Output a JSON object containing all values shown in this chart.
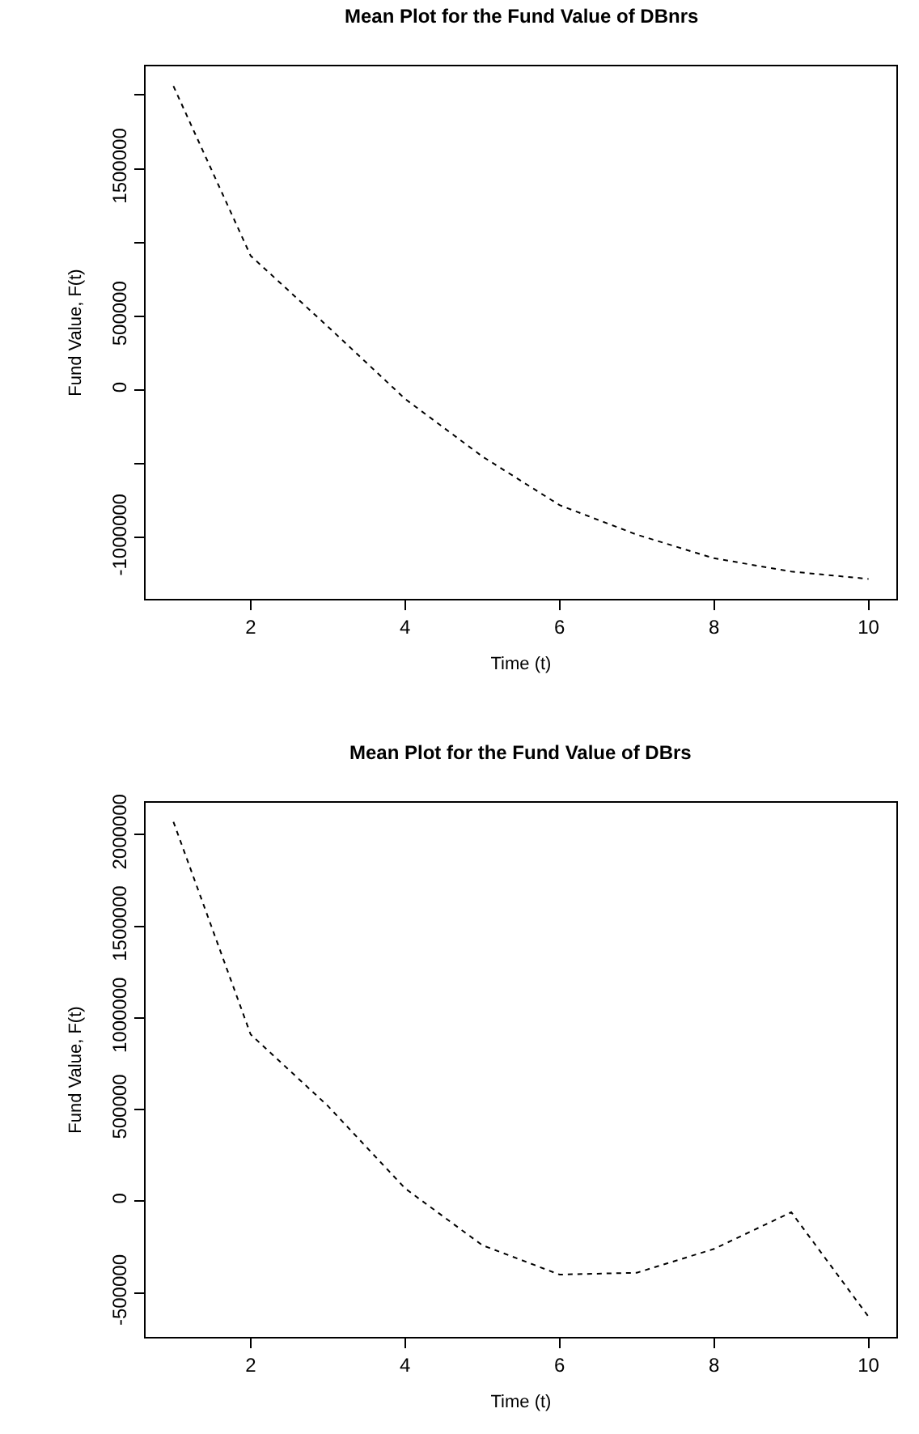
{
  "chart_data": [
    {
      "type": "line",
      "title": "Mean Plot for the Fund Value of DBnrs",
      "xlabel": "Time (t)",
      "ylabel": "Fund Value, F(t)",
      "x": [
        1,
        2,
        3,
        4,
        5,
        6,
        7,
        8,
        9,
        10
      ],
      "series": [
        {
          "color": "#000000",
          "values": [
            2060000,
            910000,
            430000,
            -60000,
            -450000,
            -780000,
            -980000,
            -1140000,
            -1230000,
            -1280000
          ]
        }
      ],
      "xlim": [
        0.64,
        10.36
      ],
      "ylim": [
        -1415000,
        2194000
      ],
      "xticks": [
        2,
        4,
        6,
        8,
        10
      ],
      "yticks": [
        -1000000,
        {
          "value": -500000,
          "label": null
        },
        0,
        500000,
        {
          "value": 1000000,
          "label": null
        },
        1500000,
        {
          "value": 2000000,
          "label": null
        }
      ],
      "line_style": "dashed",
      "marker": "none"
    },
    {
      "type": "line",
      "title": "Mean Plot for the Fund Value of DBrs",
      "xlabel": "Time (t)",
      "ylabel": "Fund Value, F(t)",
      "x": [
        1,
        2,
        3,
        4,
        5,
        6,
        7,
        8,
        9,
        10
      ],
      "series": [
        {
          "color": "#000000",
          "values": [
            2070000,
            910000,
            520000,
            70000,
            -240000,
            -400000,
            -390000,
            -260000,
            -60000,
            -630000
          ]
        }
      ],
      "xlim": [
        0.64,
        10.36
      ],
      "ylim": [
        -740000,
        2174000
      ],
      "xticks": [
        2,
        4,
        6,
        8,
        10
      ],
      "yticks": [
        -500000,
        0,
        500000,
        1000000,
        1500000,
        2000000
      ],
      "line_style": "dashed",
      "marker": "none"
    }
  ]
}
